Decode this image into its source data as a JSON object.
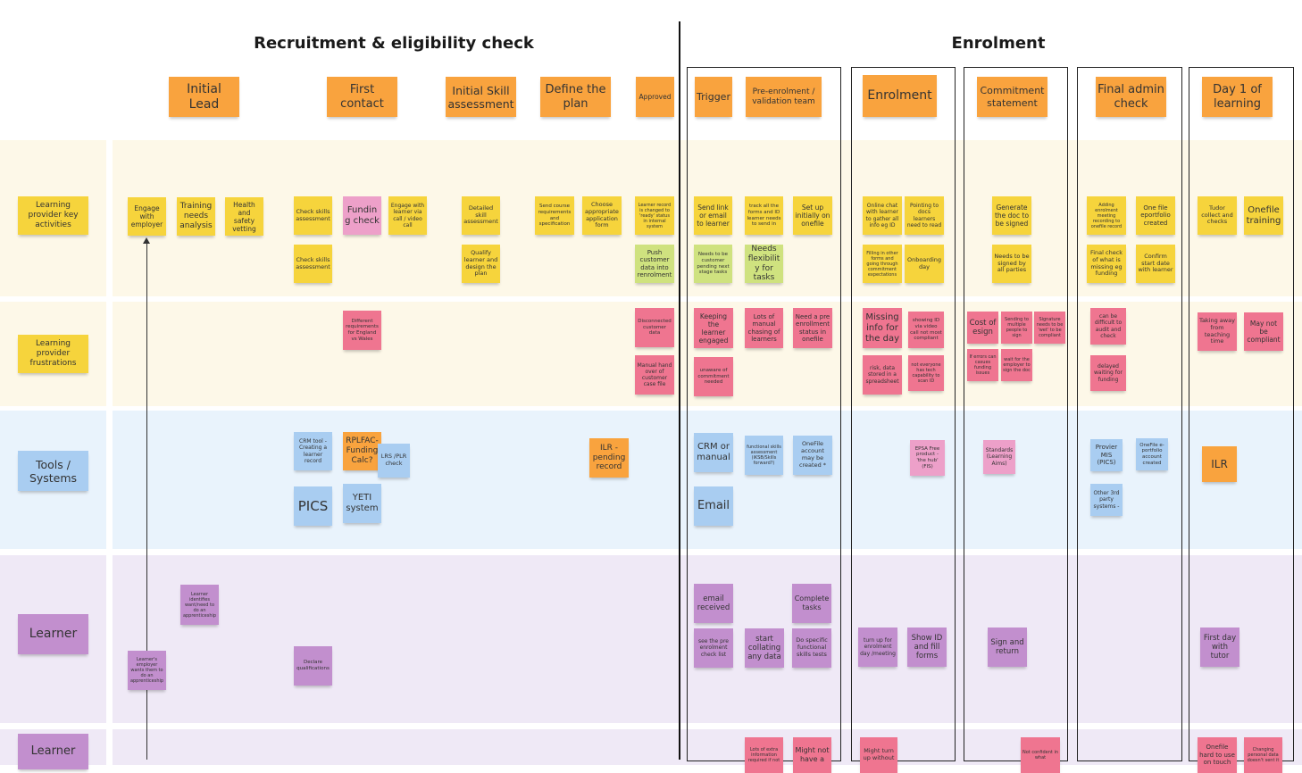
{
  "colors": {
    "yellow": "#f6d43c",
    "orange": "#f9a33e",
    "pink": "#eda0c9",
    "red": "#ef7590",
    "green": "#cfe27f",
    "blue": "#a9cdf1",
    "purple": "#c28fce",
    "row_yellow": "#fdf8e8",
    "row_blue": "#e9f3fc",
    "row_purple": "#efe9f6"
  },
  "sections": {
    "recruitment_title": "Recruitment & eligibility check",
    "enrolment_title": "Enrolment"
  },
  "stage_headers": [
    {
      "text": "Initial Lead",
      "color": "orange"
    },
    {
      "text": "First contact",
      "color": "orange"
    },
    {
      "text": "Initial Skill assessment",
      "color": "orange"
    },
    {
      "text": "Define the plan",
      "color": "orange"
    },
    {
      "text": "Approved",
      "color": "orange"
    },
    {
      "text": "Trigger",
      "color": "orange"
    },
    {
      "text": "Pre-enrolment / validation team",
      "color": "orange"
    },
    {
      "text": "Enrolment",
      "color": "orange"
    },
    {
      "text": "Commitment statement",
      "color": "orange"
    },
    {
      "text": "Final admin check",
      "color": "orange"
    },
    {
      "text": "Day 1 of learning",
      "color": "orange"
    }
  ],
  "row_labels": [
    {
      "text": "Learning provider key activities",
      "color": "yellow"
    },
    {
      "text": "Learning provider frustrations",
      "color": "yellow"
    },
    {
      "text": "Tools / Systems",
      "color": "blue"
    },
    {
      "text": "Learner",
      "color": "purple"
    },
    {
      "text": "Learner",
      "color": "purple"
    }
  ],
  "notes": [
    {
      "text": "Engage with employer",
      "color": "yellow"
    },
    {
      "text": "Training needs analysis",
      "color": "yellow"
    },
    {
      "text": "Health and safety vetting",
      "color": "yellow"
    },
    {
      "text": "Check skills assessment",
      "color": "yellow"
    },
    {
      "text": "Funding check",
      "color": "pink"
    },
    {
      "text": "Engage with learner via call / video call",
      "color": "yellow"
    },
    {
      "text": "Check skills assessment",
      "color": "yellow"
    },
    {
      "text": "Detailed skill assessment",
      "color": "yellow"
    },
    {
      "text": "Qualify learner and design the plan",
      "color": "yellow"
    },
    {
      "text": "Send course requirements and specification",
      "color": "yellow"
    },
    {
      "text": "Choose appropriate application form",
      "color": "yellow"
    },
    {
      "text": "Learner record is changed to 'ready' status in internal system",
      "color": "yellow"
    },
    {
      "text": "Push customer data into renrolment",
      "color": "green"
    },
    {
      "text": "Send link or email to learner",
      "color": "yellow"
    },
    {
      "text": "track all the forms and ID learner needs to send in",
      "color": "yellow"
    },
    {
      "text": "Set up initially on onefile",
      "color": "yellow"
    },
    {
      "text": "Needs to be customer pending next stage tasks",
      "color": "green"
    },
    {
      "text": "Needs flexibility for tasks",
      "color": "green"
    },
    {
      "text": "Online chat with learner to gather all info eg ID",
      "color": "yellow"
    },
    {
      "text": "Pointing to docs learners need to read",
      "color": "yellow"
    },
    {
      "text": "Filling in other forms and going through commitment expectations",
      "color": "yellow"
    },
    {
      "text": "Onboarding day",
      "color": "yellow"
    },
    {
      "text": "Generate the doc to be signed",
      "color": "yellow"
    },
    {
      "text": "Needs to be signed by all parties",
      "color": "yellow"
    },
    {
      "text": "Adding enrolment meeting recording to onefile record",
      "color": "yellow"
    },
    {
      "text": "One file eportfolio created",
      "color": "yellow"
    },
    {
      "text": "Final check of what is missing eg funding",
      "color": "yellow"
    },
    {
      "text": "Confirm start date with learner",
      "color": "yellow"
    },
    {
      "text": "Tudor collect and checks",
      "color": "yellow"
    },
    {
      "text": "Onefile training",
      "color": "yellow"
    },
    {
      "text": "Different requirements for England vs Wales",
      "color": "red"
    },
    {
      "text": "Disconnected customer data",
      "color": "red"
    },
    {
      "text": "Manual hand over of customer case file",
      "color": "red"
    },
    {
      "text": "Keeping the learner engaged",
      "color": "red"
    },
    {
      "text": "Lots of manual chasing of learners",
      "color": "red"
    },
    {
      "text": "Need a pre enrollment status in onefile",
      "color": "red"
    },
    {
      "text": "unaware of commitment needed",
      "color": "red"
    },
    {
      "text": "Missing info for the day",
      "color": "red"
    },
    {
      "text": "showing ID via video call not most compliant",
      "color": "red"
    },
    {
      "text": "risk, data stored in a spreadsheet",
      "color": "red"
    },
    {
      "text": "not everyone has tech capability to scan ID",
      "color": "red"
    },
    {
      "text": "Cost of esign",
      "color": "red"
    },
    {
      "text": "Sending to multiple people to sign",
      "color": "red"
    },
    {
      "text": "Signature needs to be 'wet' to be compliant",
      "color": "red"
    },
    {
      "text": "If errors can casues funding issues",
      "color": "red"
    },
    {
      "text": "wait for the employer to sign the doc",
      "color": "red"
    },
    {
      "text": "can be difficult to audit and check",
      "color": "red"
    },
    {
      "text": "delayed waiting for funding",
      "color": "red"
    },
    {
      "text": "Taking away from teaching time",
      "color": "red"
    },
    {
      "text": "May not be compliant",
      "color": "red"
    },
    {
      "text": "CRM tool - Creating a learner record",
      "color": "blue"
    },
    {
      "text": "RPLFAC- Funding Calc?",
      "color": "orange"
    },
    {
      "text": "LRS /PLR check",
      "color": "blue"
    },
    {
      "text": "PICS",
      "color": "blue"
    },
    {
      "text": "YETI system",
      "color": "blue"
    },
    {
      "text": "ILR - pending record",
      "color": "orange"
    },
    {
      "text": "CRM or manual",
      "color": "blue"
    },
    {
      "text": "functional skills assessment (iKSB/Skills forward?)",
      "color": "blue"
    },
    {
      "text": "OneFile account may be created *",
      "color": "blue"
    },
    {
      "text": "Email",
      "color": "blue"
    },
    {
      "text": "EPSA Free product - 'the hub' (FIS)",
      "color": "pink"
    },
    {
      "text": "Standards (Learning Aims)",
      "color": "pink"
    },
    {
      "text": "Provier MIS (PICS)",
      "color": "blue"
    },
    {
      "text": "OneFile e-portfolio account created",
      "color": "blue"
    },
    {
      "text": "Other 3rd party systems -",
      "color": "blue"
    },
    {
      "text": "ILR",
      "color": "orange"
    },
    {
      "text": "Learner identifies want/need to do an apprenticeship",
      "color": "purple"
    },
    {
      "text": "Learner's employer wants them to do an apprenticeship",
      "color": "purple"
    },
    {
      "text": "Declare qualifications",
      "color": "purple"
    },
    {
      "text": "email received",
      "color": "purple"
    },
    {
      "text": "Complete tasks",
      "color": "purple"
    },
    {
      "text": "see the pre enrolment check list",
      "color": "purple"
    },
    {
      "text": "start collating any data",
      "color": "purple"
    },
    {
      "text": "Do specific functional skills tests",
      "color": "purple"
    },
    {
      "text": "turn up for enrolment day /meeting",
      "color": "purple"
    },
    {
      "text": "Show ID and fill forms",
      "color": "purple"
    },
    {
      "text": "Sign and return",
      "color": "purple"
    },
    {
      "text": "First day with tutor",
      "color": "purple"
    },
    {
      "text": "Lots of extra information required if not",
      "color": "red"
    },
    {
      "text": "Might not have a",
      "color": "red"
    },
    {
      "text": "Might turn up without",
      "color": "red"
    },
    {
      "text": "Not confident in what",
      "color": "red"
    },
    {
      "text": "Onefile hard to use on touch",
      "color": "red"
    },
    {
      "text": "Changing personal data doesn't sent it",
      "color": "red"
    }
  ]
}
